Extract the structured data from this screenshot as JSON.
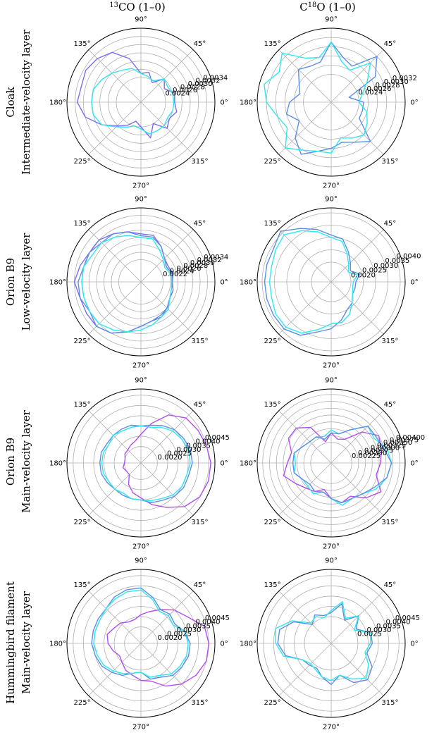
{
  "figure": {
    "column_titles": [
      {
        "sup": "13",
        "main": "CO (1–0)"
      },
      {
        "pre": "C",
        "sup": "18",
        "main": "O (1–0)"
      }
    ],
    "row_labels": [
      [
        "Cloak",
        "Intermediate-velocity layer"
      ],
      [
        "Orion B9",
        "Low-velocity layer"
      ],
      [
        "Orion B9",
        "Main-velocity layer"
      ],
      [
        "Hummingbird filament",
        "Main-velocity layer"
      ]
    ],
    "angle_labels": [
      "0°",
      "45°",
      "90°",
      "135°",
      "180°",
      "225°",
      "270°",
      "315°"
    ]
  },
  "colors": {
    "violet": "#7b6cf0",
    "cyan": "#2ee8f0",
    "blue": "#5b8ee6",
    "purple": "#b34ef0",
    "grid": "#b0b0b0"
  },
  "chart_data": [
    {
      "type": "polar-line",
      "panel": "Cloak 13CO",
      "rlim": [
        0.0018,
        0.0036
      ],
      "rticks": [
        "0.0024",
        "0.0026",
        "0.0028",
        "0.0030",
        "0.0032",
        "0.0034"
      ],
      "rtick_values": [
        0.0024,
        0.0026,
        0.0028,
        0.003,
        0.0032,
        0.0034
      ],
      "theta_deg": [
        0,
        15,
        30,
        45,
        60,
        75,
        90,
        105,
        120,
        135,
        150,
        165,
        180,
        195,
        210,
        225,
        240,
        255,
        270,
        285,
        300,
        315,
        330,
        345
      ],
      "series": [
        {
          "color": "violet",
          "r": [
            0.00262,
            0.00265,
            0.00246,
            0.0026,
            0.00235,
            0.00255,
            0.0025,
            0.0029,
            0.0032,
            0.0033,
            0.00335,
            0.0033,
            0.00335,
            0.0032,
            0.0029,
            0.00262,
            0.00245,
            0.00228,
            0.0024,
            0.0027,
            0.0024,
            0.0027,
            0.0026,
            0.0027
          ]
        },
        {
          "color": "cyan",
          "r": [
            0.0026,
            0.0026,
            0.00255,
            0.0026,
            0.0024,
            0.00245,
            0.0025,
            0.00265,
            0.0027,
            0.0028,
            0.0029,
            0.003,
            0.003,
            0.003,
            0.0029,
            0.00265,
            0.0025,
            0.0024,
            0.00245,
            0.0026,
            0.0026,
            0.0026,
            0.00255,
            0.0026
          ]
        }
      ]
    },
    {
      "type": "polar-line",
      "panel": "Cloak C18O",
      "rlim": [
        0.0018,
        0.0034
      ],
      "rticks": [
        "0.0024",
        "0.0026",
        "0.0028",
        "0.0030",
        "0.0032"
      ],
      "rtick_values": [
        0.0024,
        0.0026,
        0.0028,
        0.003,
        0.0032
      ],
      "theta_deg": [
        0,
        15,
        30,
        45,
        60,
        75,
        90,
        105,
        120,
        135,
        150,
        165,
        180,
        195,
        210,
        225,
        240,
        255,
        270,
        285,
        300,
        315,
        330,
        345
      ],
      "series": [
        {
          "color": "blue",
          "r": [
            0.0025,
            0.0022,
            0.0029,
            0.0032,
            0.0027,
            0.0028,
            0.0031,
            0.0027,
            0.0027,
            0.0028,
            0.0026,
            0.0025,
            0.0027,
            0.0028,
            0.0026,
            0.0029,
            0.0031,
            0.0029,
            0.0028,
            0.0027,
            0.0028,
            0.003,
            0.0025,
            0.0025
          ]
        },
        {
          "color": "cyan",
          "r": [
            0.0024,
            0.0025,
            0.0027,
            0.003,
            0.0026,
            0.0027,
            0.0031,
            0.0028,
            0.0029,
            0.0033,
            0.0031,
            0.0033,
            0.0032,
            0.003,
            0.0029,
            0.0032,
            0.003,
            0.0029,
            0.0029,
            0.0026,
            0.0027,
            0.0028,
            0.0027,
            0.0026
          ]
        }
      ]
    },
    {
      "type": "polar-line",
      "panel": "Orion B9 low 13CO",
      "rlim": [
        0.0016,
        0.0036
      ],
      "rticks": [
        "0.0022",
        "0.0024",
        "0.0026",
        "0.0028",
        "0.0030",
        "0.0032",
        "0.0034"
      ],
      "rtick_values": [
        0.0022,
        0.0024,
        0.0026,
        0.0028,
        0.003,
        0.0032,
        0.0034
      ],
      "theta_deg": [
        0,
        15,
        30,
        45,
        60,
        75,
        90,
        105,
        120,
        135,
        150,
        165,
        180,
        195,
        210,
        225,
        240,
        255,
        270,
        285,
        300,
        315,
        330,
        345
      ],
      "series": [
        {
          "color": "violet",
          "r": [
            0.00245,
            0.0025,
            0.00245,
            0.0025,
            0.0027,
            0.0029,
            0.0029,
            0.003,
            0.0031,
            0.0032,
            0.0032,
            0.0033,
            0.0034,
            0.0033,
            0.0033,
            0.0033,
            0.0032,
            0.003,
            0.0028,
            0.0027,
            0.0027,
            0.0026,
            0.0025,
            0.0025
          ]
        },
        {
          "color": "blue",
          "r": [
            0.00245,
            0.00248,
            0.0024,
            0.0025,
            0.0027,
            0.00285,
            0.00285,
            0.003,
            0.0031,
            0.0031,
            0.0032,
            0.0032,
            0.0033,
            0.0033,
            0.0032,
            0.0033,
            0.0032,
            0.003,
            0.0028,
            0.0027,
            0.00265,
            0.0026,
            0.0025,
            0.00245
          ]
        },
        {
          "color": "cyan",
          "r": [
            0.00243,
            0.00245,
            0.00235,
            0.00245,
            0.0026,
            0.0028,
            0.0028,
            0.0029,
            0.003,
            0.0031,
            0.0031,
            0.0032,
            0.0032,
            0.0032,
            0.0032,
            0.0032,
            0.0031,
            0.003,
            0.0029,
            0.0028,
            0.0027,
            0.00265,
            0.0025,
            0.00245
          ]
        }
      ]
    },
    {
      "type": "polar-line",
      "panel": "Orion B9 low C18O",
      "rlim": [
        0.0012,
        0.0042
      ],
      "rticks": [
        "0.0020",
        "0.0025",
        "0.0030",
        "0.0035",
        "0.0040"
      ],
      "rtick_values": [
        0.002,
        0.0025,
        0.003,
        0.0035,
        0.004
      ],
      "theta_deg": [
        0,
        15,
        30,
        45,
        60,
        75,
        90,
        105,
        120,
        135,
        150,
        165,
        180,
        195,
        210,
        225,
        240,
        255,
        270,
        285,
        300,
        315,
        330,
        345
      ],
      "series": [
        {
          "color": "blue",
          "r": [
            0.0022,
            0.0024,
            0.0021,
            0.0023,
            0.0026,
            0.003,
            0.0031,
            0.0034,
            0.0037,
            0.0041,
            0.0039,
            0.0039,
            0.0039,
            0.0039,
            0.0039,
            0.0039,
            0.0037,
            0.0033,
            0.0031,
            0.0028,
            0.0025,
            0.0024,
            0.0022,
            0.0022
          ]
        },
        {
          "color": "cyan",
          "r": [
            0.0021,
            0.0023,
            0.002,
            0.0022,
            0.0025,
            0.0029,
            0.003,
            0.0033,
            0.0036,
            0.0039,
            0.0038,
            0.0037,
            0.0037,
            0.0037,
            0.0038,
            0.0038,
            0.0036,
            0.0032,
            0.0029,
            0.0029,
            0.0027,
            0.0024,
            0.0022,
            0.0021
          ]
        }
      ]
    },
    {
      "type": "polar-line",
      "panel": "Orion B9 main 13CO",
      "rlim": [
        0.0012,
        0.0048
      ],
      "rticks": [
        "0.0020",
        "0.0025",
        "0.0030",
        "0.0035",
        "0.0040",
        "0.0045"
      ],
      "rtick_values": [
        0.002,
        0.0025,
        0.003,
        0.0035,
        0.004,
        0.0045
      ],
      "theta_deg": [
        0,
        15,
        30,
        45,
        60,
        75,
        90,
        105,
        120,
        135,
        150,
        165,
        180,
        195,
        210,
        225,
        240,
        255,
        270,
        285,
        300,
        315,
        330,
        345
      ],
      "series": [
        {
          "color": "purple",
          "r": [
            0.0046,
            0.0045,
            0.0044,
            0.0043,
            0.0039,
            0.0032,
            0.0026,
            0.0023,
            0.0022,
            0.0021,
            0.0021,
            0.002,
            0.002,
            0.0021,
            0.002,
            0.002,
            0.0024,
            0.0027,
            0.0029,
            0.0033,
            0.0037,
            0.0042,
            0.0045,
            0.0046
          ]
        },
        {
          "color": "blue",
          "r": [
            0.0037,
            0.0037,
            0.0036,
            0.0035,
            0.0033,
            0.0031,
            0.003,
            0.0031,
            0.0031,
            0.0031,
            0.0031,
            0.0032,
            0.0032,
            0.0032,
            0.0031,
            0.003,
            0.003,
            0.003,
            0.003,
            0.0032,
            0.0033,
            0.0035,
            0.0036,
            0.0036
          ]
        },
        {
          "color": "cyan",
          "r": [
            0.0036,
            0.0036,
            0.0035,
            0.0034,
            0.0032,
            0.003,
            0.003,
            0.003,
            0.003,
            0.0031,
            0.003,
            0.0031,
            0.0031,
            0.0031,
            0.003,
            0.003,
            0.0029,
            0.003,
            0.003,
            0.0031,
            0.0032,
            0.0034,
            0.0035,
            0.0035
          ]
        }
      ]
    },
    {
      "type": "polar-line",
      "panel": "Orion B9 main C18O",
      "rlim": [
        0.0015,
        0.0042
      ],
      "rticks": [
        "0.00225",
        "0.00250",
        "0.00275",
        "0.00300",
        "0.00325",
        "0.00350",
        "0.00375",
        "0.00400"
      ],
      "rtick_values": [
        0.00225,
        0.0025,
        0.00275,
        0.003,
        0.00325,
        0.0035,
        0.00375,
        0.004
      ],
      "theta_deg": [
        0,
        15,
        30,
        45,
        60,
        75,
        90,
        105,
        120,
        135,
        150,
        165,
        180,
        195,
        210,
        225,
        240,
        255,
        270,
        285,
        300,
        315,
        330,
        345
      ],
      "series": [
        {
          "color": "purple",
          "r": [
            0.0033,
            0.0034,
            0.0035,
            0.0031,
            0.0025,
            0.0024,
            0.0026,
            0.0023,
            0.003,
            0.0033,
            0.0033,
            0.003,
            0.0031,
            0.0033,
            0.003,
            0.0028,
            0.0027,
            0.0025,
            0.0028,
            0.003,
            0.0029,
            0.0033,
            0.0036,
            0.0032
          ]
        },
        {
          "color": "cyan",
          "r": [
            0.0037,
            0.0036,
            0.0033,
            0.0034,
            0.0029,
            0.0026,
            0.0027,
            0.0025,
            0.0026,
            0.0026,
            0.0027,
            0.0029,
            0.0028,
            0.0029,
            0.0027,
            0.0027,
            0.0028,
            0.0026,
            0.0028,
            0.0031,
            0.003,
            0.0031,
            0.0034,
            0.0036
          ]
        },
        {
          "color": "blue",
          "r": [
            0.0037,
            0.0035,
            0.0034,
            0.0034,
            0.0029,
            0.0026,
            0.0026,
            0.0024,
            0.0026,
            0.0026,
            0.0027,
            0.0029,
            0.0029,
            0.0029,
            0.0027,
            0.0026,
            0.0027,
            0.0026,
            0.0028,
            0.003,
            0.003,
            0.0031,
            0.0033,
            0.0036
          ]
        }
      ]
    },
    {
      "type": "polar-line",
      "panel": "Hummingbird 13CO",
      "rlim": [
        0.0012,
        0.0048
      ],
      "rticks": [
        "0.0020",
        "0.0025",
        "0.0030",
        "0.0035",
        "0.0040",
        "0.0045"
      ],
      "rtick_values": [
        0.002,
        0.0025,
        0.003,
        0.0035,
        0.004,
        0.0045
      ],
      "theta_deg": [
        0,
        15,
        30,
        45,
        60,
        75,
        90,
        105,
        120,
        135,
        150,
        165,
        180,
        195,
        210,
        225,
        240,
        255,
        270,
        285,
        300,
        315,
        330,
        345
      ],
      "series": [
        {
          "color": "purple",
          "r": [
            0.0045,
            0.0044,
            0.0038,
            0.0035,
            0.0031,
            0.0028,
            0.0026,
            0.0024,
            0.0024,
            0.0026,
            0.0027,
            0.0029,
            0.0028,
            0.0026,
            0.0024,
            0.0025,
            0.0027,
            0.0028,
            0.003,
            0.0031,
            0.0036,
            0.004,
            0.0043,
            0.0045
          ]
        },
        {
          "color": "blue",
          "r": [
            0.0036,
            0.0034,
            0.0031,
            0.0032,
            0.0031,
            0.0035,
            0.0039,
            0.0039,
            0.0038,
            0.0036,
            0.0036,
            0.0036,
            0.0036,
            0.0035,
            0.0034,
            0.0032,
            0.003,
            0.0027,
            0.0026,
            0.003,
            0.0031,
            0.0034,
            0.0035,
            0.0036
          ]
        },
        {
          "color": "cyan",
          "r": [
            0.0035,
            0.0034,
            0.003,
            0.0031,
            0.003,
            0.0034,
            0.0038,
            0.0038,
            0.0037,
            0.0036,
            0.0035,
            0.0035,
            0.0035,
            0.0034,
            0.0033,
            0.0031,
            0.0029,
            0.0027,
            0.0026,
            0.0029,
            0.003,
            0.0033,
            0.0034,
            0.0035
          ]
        }
      ]
    },
    {
      "type": "polar-line",
      "panel": "Hummingbird C18O",
      "rlim": [
        0.0012,
        0.0048
      ],
      "rticks": [
        "0.0025",
        "0.0030",
        "0.0035",
        "0.0040",
        "0.0045"
      ],
      "rtick_values": [
        0.0025,
        0.003,
        0.0035,
        0.004,
        0.0045
      ],
      "theta_deg": [
        0,
        15,
        30,
        45,
        60,
        75,
        90,
        105,
        120,
        135,
        150,
        165,
        180,
        195,
        210,
        225,
        240,
        255,
        270,
        285,
        300,
        315,
        330,
        345
      ],
      "series": [
        {
          "color": "blue",
          "r": [
            0.0032,
            0.0032,
            0.0026,
            0.0031,
            0.0025,
            0.0032,
            0.0027,
            0.0026,
            0.0028,
            0.0025,
            0.0033,
            0.0038,
            0.0038,
            0.0035,
            0.0028,
            0.0027,
            0.0026,
            0.0029,
            0.0032,
            0.0028,
            0.0034,
            0.0037,
            0.0035,
            0.003
          ]
        },
        {
          "color": "cyan",
          "r": [
            0.0031,
            0.0032,
            0.0025,
            0.0031,
            0.0026,
            0.0033,
            0.0028,
            0.0025,
            0.0027,
            0.0026,
            0.0034,
            0.004,
            0.0039,
            0.0036,
            0.0028,
            0.0026,
            0.0027,
            0.0029,
            0.003,
            0.0028,
            0.0032,
            0.0036,
            0.0033,
            0.0029
          ]
        }
      ]
    }
  ]
}
